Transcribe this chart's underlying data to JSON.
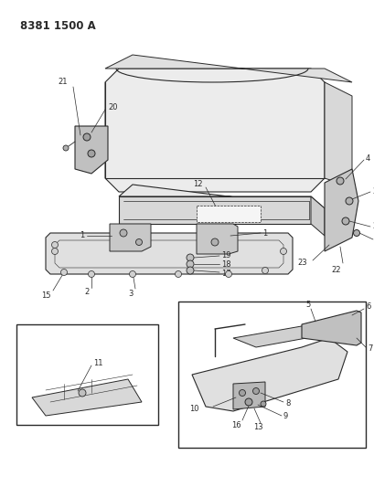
{
  "title": "8381 1500 A",
  "bg_color": "#ffffff",
  "line_color": "#2a2a2a",
  "fig_width": 4.1,
  "fig_height": 5.33,
  "dpi": 100,
  "label_fs": 6.0,
  "title_fs": 8.5
}
